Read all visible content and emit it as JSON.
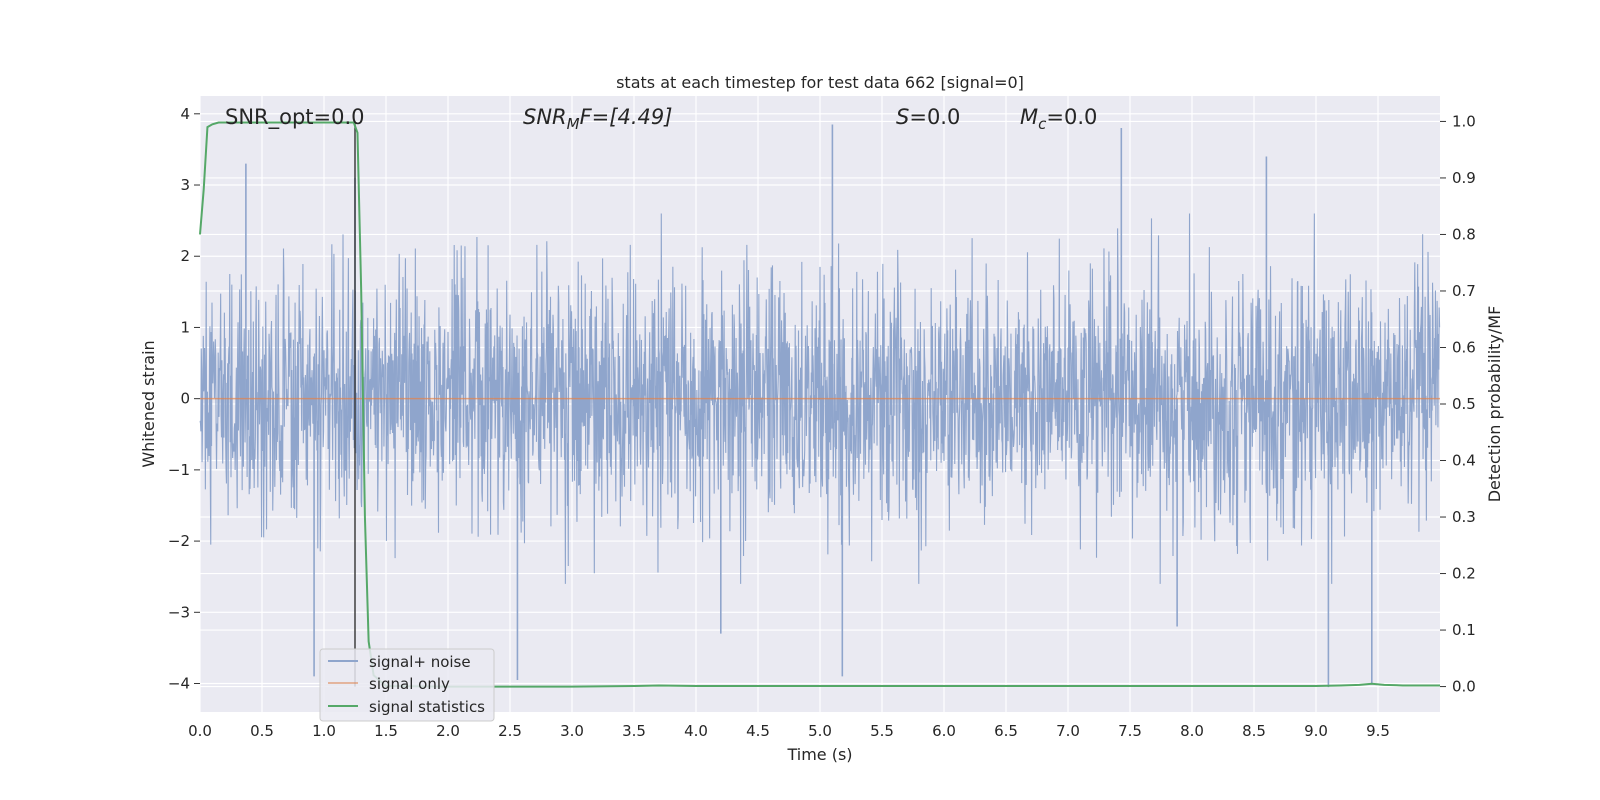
{
  "chart_data": {
    "type": "line",
    "title": "stats at each timestep for test data 662 [signal=0]",
    "xlabel": "Time (s)",
    "ylabel": "Whitened strain",
    "y2label": "Detection probability/MF",
    "xlim": [
      0.0,
      10.0
    ],
    "ylim": [
      -4.4,
      4.25
    ],
    "y2lim": [
      -0.045,
      1.045
    ],
    "xticks": [
      "0.0",
      "0.5",
      "1.0",
      "1.5",
      "2.0",
      "2.5",
      "3.0",
      "3.5",
      "4.0",
      "4.5",
      "5.0",
      "5.5",
      "6.0",
      "6.5",
      "7.0",
      "7.5",
      "8.0",
      "8.5",
      "9.0",
      "9.5"
    ],
    "xtick_values": [
      0,
      0.5,
      1,
      1.5,
      2,
      2.5,
      3,
      3.5,
      4,
      4.5,
      5,
      5.5,
      6,
      6.5,
      7,
      7.5,
      8,
      8.5,
      9,
      9.5
    ],
    "yticks": [
      "4",
      "3",
      "2",
      "1",
      "0",
      "−1",
      "−2",
      "−3",
      "−4"
    ],
    "ytick_values": [
      4,
      3,
      2,
      1,
      0,
      -1,
      -2,
      -3,
      -4
    ],
    "y2ticks": [
      "1.0",
      "0.9",
      "0.8",
      "0.7",
      "0.6",
      "0.5",
      "0.4",
      "0.3",
      "0.2",
      "0.1",
      "0.0"
    ],
    "y2tick_values": [
      1.0,
      0.9,
      0.8,
      0.7,
      0.6,
      0.5,
      0.4,
      0.3,
      0.2,
      0.1,
      0.0
    ],
    "grid": true,
    "legend_position": "lower-left",
    "annotations": {
      "snr_opt": "SNR_opt=0.0",
      "snr_mf_var": "SNR",
      "snr_mf_sub": "M",
      "snr_mf_rest": "F=[4.49]",
      "s_var": "S",
      "s_rest": "=0.0",
      "mc_var": "M",
      "mc_sub": "c",
      "mc_rest": "=0.0"
    },
    "event_marker_x": 1.25,
    "series": [
      {
        "name": "signal+ noise",
        "color": "#8fa5cc",
        "axis": "left",
        "description": "whitened noise, roughly within ±2.5 with peaks near ±3.9",
        "peaks": [
          [
            1.25,
            3.1
          ],
          [
            5.1,
            3.85
          ],
          [
            7.43,
            3.8
          ],
          [
            8.6,
            3.4
          ],
          [
            0.37,
            3.3
          ],
          [
            0.92,
            -3.9
          ],
          [
            2.56,
            -3.95
          ],
          [
            5.18,
            -3.9
          ],
          [
            9.1,
            -4.05
          ],
          [
            7.88,
            -3.2
          ],
          [
            4.2,
            -3.3
          ],
          [
            9.45,
            -4.0
          ]
        ]
      },
      {
        "name": "signal only",
        "color": "#dd8452",
        "axis": "left",
        "x": [
          0.0,
          10.0
        ],
        "y": [
          0.0,
          0.0
        ]
      },
      {
        "name": "signal statistics",
        "color": "#55a868",
        "axis": "right",
        "x": [
          0.0,
          0.03,
          0.06,
          0.1,
          0.15,
          0.3,
          0.6,
          0.9,
          1.15,
          1.24,
          1.27,
          1.3,
          1.33,
          1.36,
          1.4,
          1.5,
          2.0,
          3.0,
          3.5,
          3.7,
          4.0,
          5.0,
          6.0,
          7.0,
          8.0,
          9.0,
          9.2,
          9.35,
          9.45,
          9.55,
          9.7,
          10.0
        ],
        "y": [
          0.8,
          0.88,
          0.99,
          0.995,
          0.998,
          0.998,
          0.998,
          0.998,
          0.998,
          0.998,
          0.98,
          0.7,
          0.3,
          0.08,
          0.02,
          0.001,
          0.0,
          0.0,
          0.001,
          0.002,
          0.001,
          0.001,
          0.001,
          0.001,
          0.001,
          0.001,
          0.002,
          0.003,
          0.005,
          0.003,
          0.002,
          0.002
        ]
      }
    ]
  }
}
